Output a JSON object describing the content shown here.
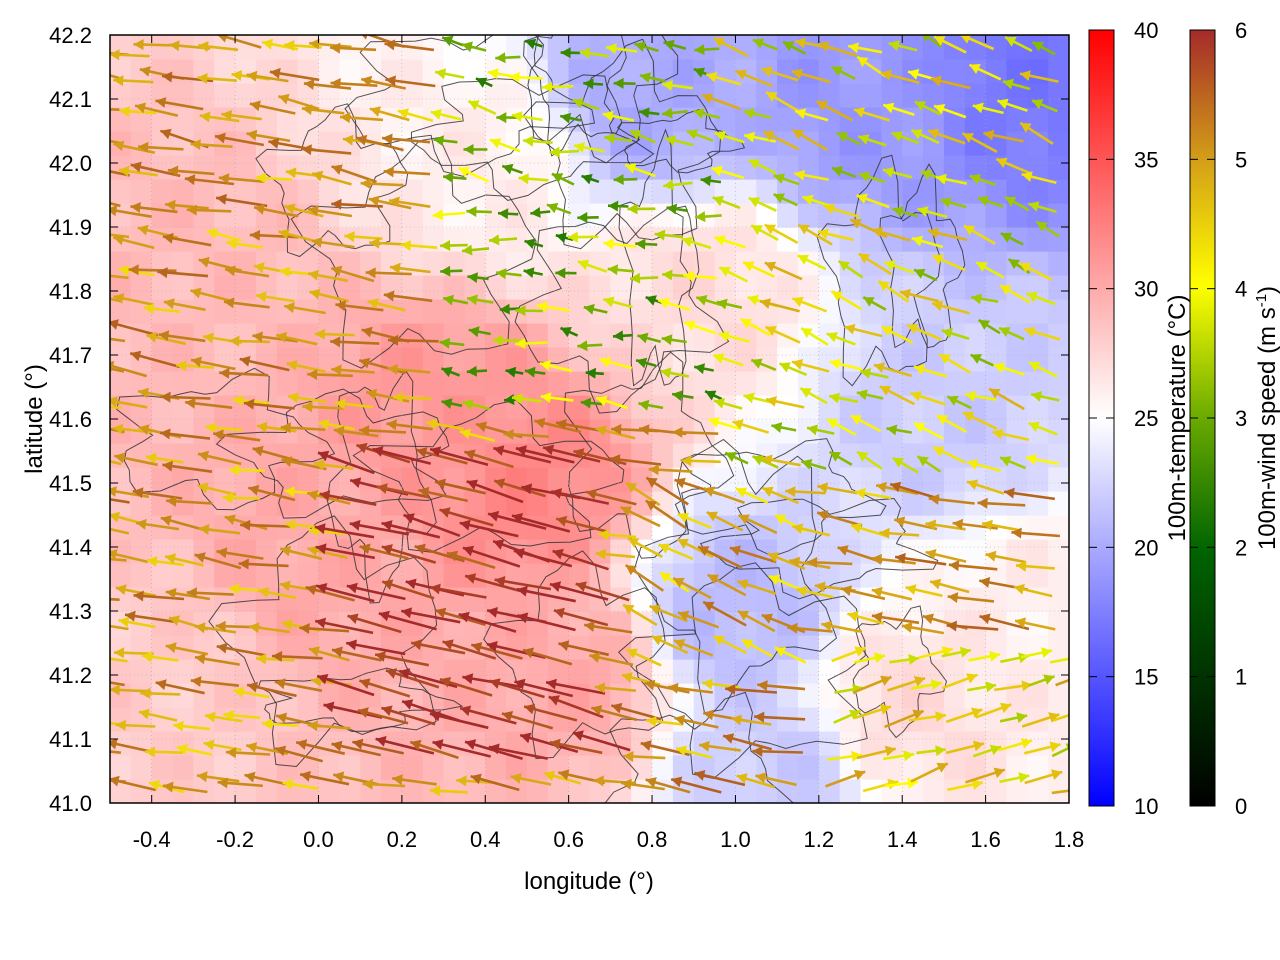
{
  "chart_data": {
    "type": "heatmap",
    "xlabel": "longitude (°)",
    "ylabel": "latitude (°)",
    "xlim": [
      -0.5,
      1.8
    ],
    "ylim": [
      41.0,
      42.2
    ],
    "xticks": [
      -0.4,
      -0.2,
      0.0,
      0.2,
      0.4,
      0.6,
      0.8,
      1.0,
      1.2,
      1.4,
      1.6,
      1.8
    ],
    "xtick_labels": [
      "-0.4",
      "-0.2",
      "0.0",
      "0.2",
      "0.4",
      "0.6",
      "0.8",
      "1.0",
      "1.2",
      "1.4",
      "1.6",
      "1.8"
    ],
    "yticks": [
      41.0,
      41.1,
      41.2,
      41.3,
      41.4,
      41.5,
      41.6,
      41.7,
      41.8,
      41.9,
      42.0,
      42.1,
      42.2
    ],
    "ytick_labels": [
      "41.0",
      "41.1",
      "41.2",
      "41.3",
      "41.4",
      "41.5",
      "41.6",
      "41.7",
      "41.8",
      "41.9",
      "42.0",
      "42.1",
      "42.2"
    ],
    "grid": true,
    "temperature_colorbar": {
      "label": "100m-temperature (°C)",
      "range": [
        10,
        40
      ],
      "ticks": [
        10,
        15,
        20,
        25,
        30,
        35,
        40
      ],
      "tick_labels": [
        "10",
        "15",
        "20",
        "25",
        "30",
        "35",
        "40"
      ],
      "colors": [
        "#0000ff",
        "#ffffff",
        "#ff0000"
      ]
    },
    "wind_colorbar": {
      "label": "100m-wind speed (m s",
      "label_sup": "-1",
      "label_end": ")",
      "range": [
        0,
        6
      ],
      "ticks": [
        0,
        1,
        2,
        3,
        4,
        5,
        6
      ],
      "tick_labels": [
        "0",
        "1",
        "2",
        "3",
        "4",
        "5",
        "6"
      ],
      "colors": [
        "#000000",
        "#006400",
        "#6aaa00",
        "#ffff00",
        "#d4a017",
        "#b5651d",
        "#a52a2a"
      ]
    },
    "temperature_field": {
      "description_points": [
        {
          "lon": -0.4,
          "lat": 41.2,
          "t": 28
        },
        {
          "lon": -0.3,
          "lat": 41.8,
          "t": 29
        },
        {
          "lon": 0.0,
          "lat": 41.4,
          "t": 30
        },
        {
          "lon": 0.3,
          "lat": 41.6,
          "t": 31
        },
        {
          "lon": 0.5,
          "lat": 41.5,
          "t": 32
        },
        {
          "lon": 0.6,
          "lat": 41.2,
          "t": 30
        },
        {
          "lon": 0.4,
          "lat": 42.0,
          "t": 26
        },
        {
          "lon": 0.9,
          "lat": 41.8,
          "t": 27
        },
        {
          "lon": 1.0,
          "lat": 41.3,
          "t": 21
        },
        {
          "lon": 1.1,
          "lat": 41.05,
          "t": 22
        },
        {
          "lon": 1.4,
          "lat": 41.15,
          "t": 27
        },
        {
          "lon": 1.5,
          "lat": 41.6,
          "t": 22
        },
        {
          "lon": 1.3,
          "lat": 42.1,
          "t": 19
        },
        {
          "lon": 1.7,
          "lat": 42.15,
          "t": 17
        },
        {
          "lon": 0.8,
          "lat": 42.1,
          "t": 20
        },
        {
          "lon": 1.7,
          "lat": 41.3,
          "t": 26
        }
      ]
    },
    "wind_regions": [
      {
        "lon": [
          -0.5,
          0.3
        ],
        "lat": [
          41.0,
          42.2
        ],
        "u_ms": -3.8,
        "v_ms": 0.6,
        "speed_ms": 4.2
      },
      {
        "lon": [
          0.1,
          0.75
        ],
        "lat": [
          41.05,
          41.55
        ],
        "u_ms": -5.5,
        "v_ms": 1.4,
        "speed_ms": 5.8
      },
      {
        "lon": [
          0.3,
          1.0
        ],
        "lat": [
          41.6,
          42.2
        ],
        "u_ms": -2.0,
        "v_ms": 0.3,
        "speed_ms": 2.2
      },
      {
        "lon": [
          0.8,
          1.2
        ],
        "lat": [
          41.2,
          41.5
        ],
        "u_ms": -3.5,
        "v_ms": 1.6,
        "speed_ms": 4.0
      },
      {
        "lon": [
          1.0,
          1.8
        ],
        "lat": [
          41.5,
          42.2
        ],
        "u_ms": -2.6,
        "v_ms": 1.0,
        "speed_ms": 3.0
      },
      {
        "lon": [
          1.2,
          1.8
        ],
        "lat": [
          41.0,
          41.25
        ],
        "u_ms": 3.0,
        "v_ms": 0.8,
        "speed_ms": 3.2
      }
    ]
  }
}
